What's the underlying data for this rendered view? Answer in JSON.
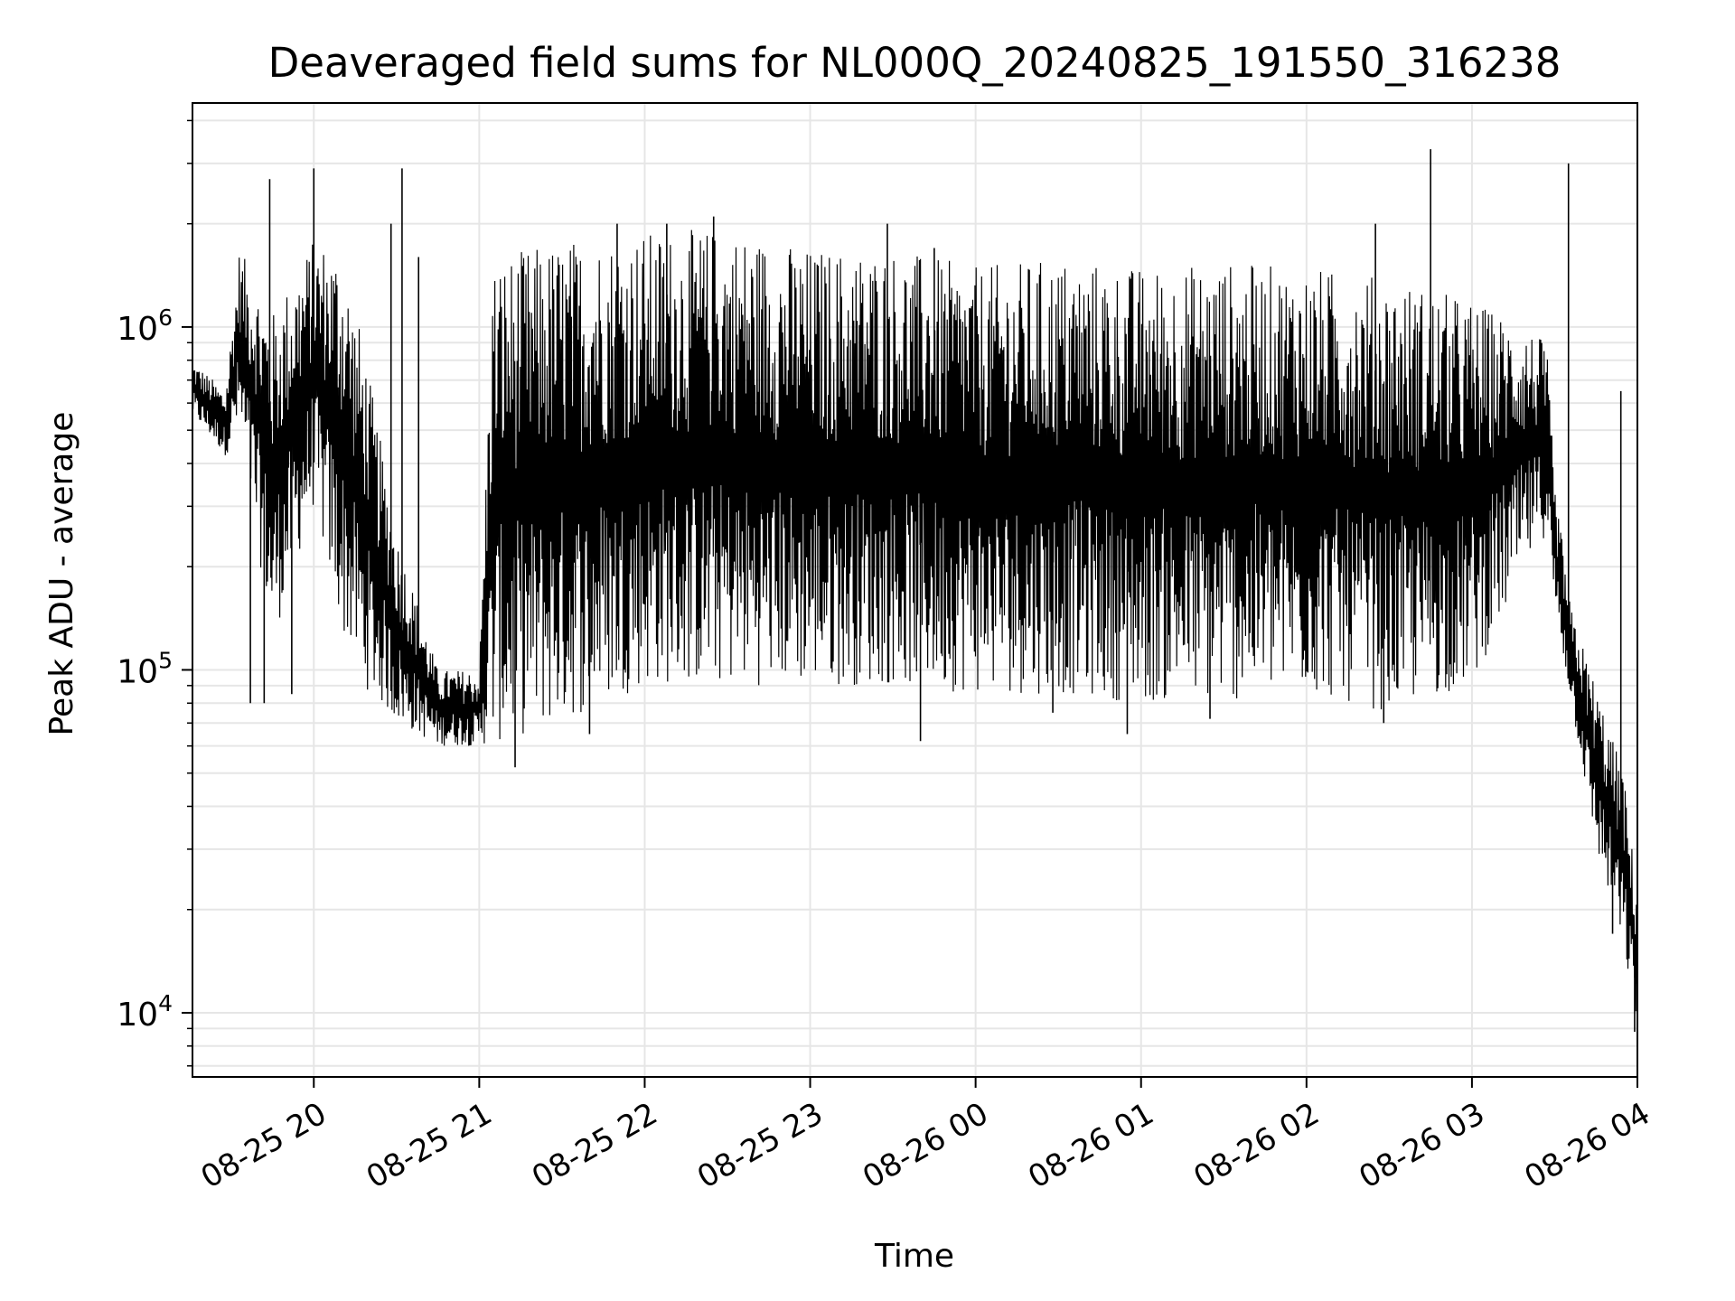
{
  "chart_data": {
    "type": "line",
    "title": "Deaveraged field sums for NL000Q_20240825_191550_316238",
    "xlabel": "Time",
    "ylabel": "Peak ADU - average",
    "yscale": "log",
    "ylim": [
      6500,
      4500000
    ],
    "xlim": [
      "2024-08-25T19:16",
      "2024-08-26T04:00"
    ],
    "x_ticks": [
      {
        "t": "2024-08-25T20:00",
        "label": "08-25 20"
      },
      {
        "t": "2024-08-25T21:00",
        "label": "08-25 21"
      },
      {
        "t": "2024-08-25T22:00",
        "label": "08-25 22"
      },
      {
        "t": "2024-08-25T23:00",
        "label": "08-25 23"
      },
      {
        "t": "2024-08-26T00:00",
        "label": "08-26 00"
      },
      {
        "t": "2024-08-26T01:00",
        "label": "08-26 01"
      },
      {
        "t": "2024-08-26T02:00",
        "label": "08-26 02"
      },
      {
        "t": "2024-08-26T03:00",
        "label": "08-26 03"
      },
      {
        "t": "2024-08-26T04:00",
        "label": "08-26 04"
      }
    ],
    "y_ticks": [
      {
        "value": 10000,
        "base": "10",
        "exp": "4"
      },
      {
        "value": 100000,
        "base": "10",
        "exp": "5"
      },
      {
        "value": 1000000,
        "base": "10",
        "exp": "6"
      }
    ],
    "grid": true,
    "series": [
      {
        "color": "#000000",
        "envelope": [
          {
            "t": "2024-08-25T19:16",
            "low": 550000,
            "high": 800000
          },
          {
            "t": "2024-08-25T19:28",
            "low": 420000,
            "high": 650000
          },
          {
            "t": "2024-08-25T19:33",
            "low": 500000,
            "high": 1700000
          },
          {
            "t": "2024-08-25T19:45",
            "low": 120000,
            "high": 1100000
          },
          {
            "t": "2024-08-25T20:00",
            "low": 300000,
            "high": 1800000
          },
          {
            "t": "2024-08-25T20:10",
            "low": 130000,
            "high": 1700000
          },
          {
            "t": "2024-08-25T20:18",
            "low": 90000,
            "high": 900000
          },
          {
            "t": "2024-08-25T20:30",
            "low": 70000,
            "high": 250000
          },
          {
            "t": "2024-08-25T20:45",
            "low": 60000,
            "high": 100000
          },
          {
            "t": "2024-08-25T21:00",
            "low": 60000,
            "high": 100000
          },
          {
            "t": "2024-08-25T21:05",
            "low": 60000,
            "high": 1600000
          },
          {
            "t": "2024-08-25T21:30",
            "low": 70000,
            "high": 1800000
          },
          {
            "t": "2024-08-25T22:00",
            "low": 90000,
            "high": 1900000
          },
          {
            "t": "2024-08-25T22:30",
            "low": 90000,
            "high": 1950000
          },
          {
            "t": "2024-08-25T23:00",
            "low": 90000,
            "high": 1700000
          },
          {
            "t": "2024-08-25T23:30",
            "low": 90000,
            "high": 1700000
          },
          {
            "t": "2024-08-26T00:00",
            "low": 85000,
            "high": 1500000
          },
          {
            "t": "2024-08-26T00:30",
            "low": 85000,
            "high": 1600000
          },
          {
            "t": "2024-08-26T01:00",
            "low": 80000,
            "high": 1500000
          },
          {
            "t": "2024-08-26T01:30",
            "low": 80000,
            "high": 1550000
          },
          {
            "t": "2024-08-26T02:00",
            "low": 85000,
            "high": 1500000
          },
          {
            "t": "2024-08-26T02:30",
            "low": 75000,
            "high": 1400000
          },
          {
            "t": "2024-08-26T03:00",
            "low": 90000,
            "high": 1200000
          },
          {
            "t": "2024-08-26T03:20",
            "low": 200000,
            "high": 1000000
          },
          {
            "t": "2024-08-26T03:27",
            "low": 250000,
            "high": 900000
          },
          {
            "t": "2024-08-26T03:30",
            "low": 150000,
            "high": 350000
          },
          {
            "t": "2024-08-26T03:36",
            "low": 80000,
            "high": 150000
          },
          {
            "t": "2024-08-26T03:45",
            "low": 30000,
            "high": 90000
          },
          {
            "t": "2024-08-26T03:55",
            "low": 15000,
            "high": 50000
          },
          {
            "t": "2024-08-26T04:00",
            "low": 9000,
            "high": 22000
          }
        ],
        "spikes": [
          {
            "t": "2024-08-25T19:44",
            "peak": 2700000
          },
          {
            "t": "2024-08-25T20:00",
            "peak": 2900000
          },
          {
            "t": "2024-08-25T20:32",
            "peak": 2900000
          },
          {
            "t": "2024-08-25T20:28",
            "peak": 2000000
          },
          {
            "t": "2024-08-25T20:38",
            "peak": 1600000
          },
          {
            "t": "2024-08-25T21:50",
            "peak": 2000000
          },
          {
            "t": "2024-08-25T22:08",
            "peak": 2000000
          },
          {
            "t": "2024-08-25T22:25",
            "peak": 2100000
          },
          {
            "t": "2024-08-25T23:28",
            "peak": 2000000
          },
          {
            "t": "2024-08-25T23:45",
            "peak": 1700000
          },
          {
            "t": "2024-08-26T02:45",
            "peak": 3300000
          },
          {
            "t": "2024-08-26T03:35",
            "peak": 3000000
          },
          {
            "t": "2024-08-26T02:25",
            "peak": 2000000
          },
          {
            "t": "2024-08-26T03:54",
            "peak": 650000
          }
        ],
        "dips": [
          {
            "t": "2024-08-25T19:37",
            "low": 80000
          },
          {
            "t": "2024-08-25T19:42",
            "low": 80000
          },
          {
            "t": "2024-08-25T19:52",
            "low": 85000
          },
          {
            "t": "2024-08-25T21:13",
            "low": 52000
          },
          {
            "t": "2024-08-25T21:40",
            "low": 65000
          },
          {
            "t": "2024-08-25T23:40",
            "low": 62000
          },
          {
            "t": "2024-08-26T00:28",
            "low": 75000
          },
          {
            "t": "2024-08-26T00:55",
            "low": 65000
          },
          {
            "t": "2024-08-26T01:25",
            "low": 72000
          },
          {
            "t": "2024-08-26T02:28",
            "low": 70000
          },
          {
            "t": "2024-08-26T03:51",
            "low": 17000
          },
          {
            "t": "2024-08-26T03:59",
            "low": 8800
          }
        ]
      }
    ]
  }
}
